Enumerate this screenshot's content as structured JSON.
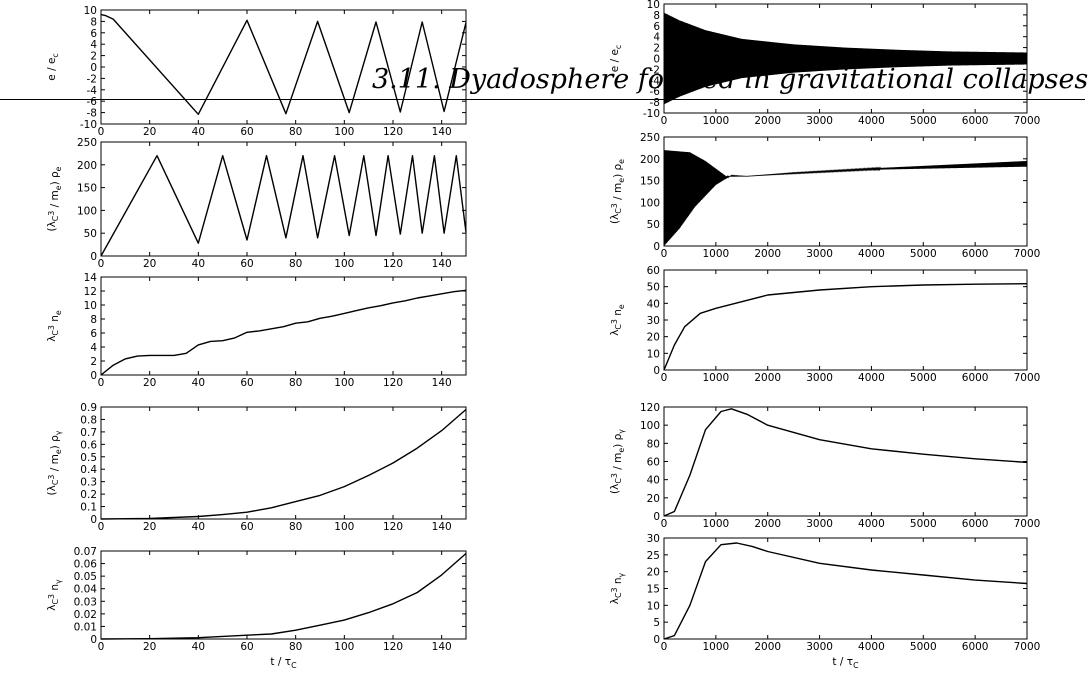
{
  "header": {
    "title": "3.11. Dyadosphere formed in gravitational collapses"
  },
  "chart_data": [
    {
      "id": "left-e",
      "type": "line",
      "column": "left",
      "ylabel": "e / e_c",
      "xlim": [
        0,
        150
      ],
      "ylim": [
        -10,
        10
      ],
      "xticks": [
        0,
        20,
        40,
        60,
        80,
        100,
        120,
        140
      ],
      "yticks": [
        -10,
        -8,
        -6,
        -4,
        -2,
        0,
        2,
        4,
        6,
        8,
        10
      ],
      "series": [
        {
          "x": [
            0,
            2,
            5,
            40,
            60,
            76,
            89,
            102,
            113,
            123,
            132,
            141,
            150
          ],
          "y": [
            9.2,
            9.0,
            8.4,
            -8.3,
            8.2,
            -8.2,
            8.0,
            -8.0,
            7.9,
            -7.9,
            7.9,
            -7.8,
            7.8
          ]
        }
      ]
    },
    {
      "id": "left-rho-e",
      "type": "line",
      "column": "left",
      "ylabel": "(λ_C^3 / m_e) ρ_e",
      "xlim": [
        0,
        150
      ],
      "ylim": [
        0,
        250
      ],
      "xticks": [
        0,
        20,
        40,
        60,
        80,
        100,
        120,
        140
      ],
      "yticks": [
        0,
        50,
        100,
        150,
        200,
        250
      ],
      "series": [
        {
          "x": [
            0,
            23,
            40,
            50,
            60,
            68,
            76,
            83,
            89,
            96,
            102,
            108,
            113,
            118,
            123,
            128,
            132,
            137,
            141,
            146,
            150
          ],
          "y": [
            0,
            220,
            28,
            220,
            35,
            220,
            40,
            220,
            40,
            220,
            45,
            220,
            45,
            220,
            48,
            220,
            50,
            220,
            50,
            220,
            52
          ]
        }
      ]
    },
    {
      "id": "left-n-e",
      "type": "line",
      "column": "left",
      "ylabel": "λ_C^3 n_e",
      "xlim": [
        0,
        150
      ],
      "ylim": [
        0,
        14
      ],
      "xticks": [
        0,
        20,
        40,
        60,
        80,
        100,
        120,
        140
      ],
      "yticks": [
        0,
        2,
        4,
        6,
        8,
        10,
        12,
        14
      ],
      "series": [
        {
          "x": [
            0,
            5,
            10,
            15,
            20,
            25,
            30,
            35,
            40,
            45,
            50,
            55,
            60,
            65,
            70,
            75,
            80,
            85,
            90,
            95,
            100,
            105,
            110,
            115,
            120,
            125,
            130,
            135,
            140,
            145,
            150
          ],
          "y": [
            0,
            1.4,
            2.3,
            2.7,
            2.8,
            2.8,
            2.8,
            3.1,
            4.3,
            4.8,
            4.9,
            5.3,
            6.1,
            6.3,
            6.6,
            6.9,
            7.4,
            7.6,
            8.1,
            8.4,
            8.8,
            9.2,
            9.6,
            9.9,
            10.3,
            10.6,
            11.0,
            11.3,
            11.6,
            11.9,
            12.1
          ]
        }
      ]
    },
    {
      "id": "left-rho-gamma",
      "type": "line",
      "column": "left",
      "ylabel": "(λ_C^3 / m_e) ρ_γ",
      "xlim": [
        0,
        150
      ],
      "ylim": [
        0,
        0.9
      ],
      "xticks": [
        0,
        20,
        40,
        60,
        80,
        100,
        120,
        140
      ],
      "yticks": [
        0,
        0.1,
        0.2,
        0.3,
        0.4,
        0.5,
        0.6,
        0.7,
        0.8,
        0.9
      ],
      "series": [
        {
          "x": [
            0,
            20,
            40,
            50,
            60,
            70,
            80,
            90,
            100,
            110,
            120,
            130,
            140,
            150
          ],
          "y": [
            0,
            0.005,
            0.02,
            0.035,
            0.055,
            0.09,
            0.14,
            0.19,
            0.26,
            0.35,
            0.45,
            0.57,
            0.71,
            0.88
          ]
        }
      ]
    },
    {
      "id": "left-n-gamma",
      "type": "line",
      "column": "left",
      "ylabel": "λ_C^3 n_γ",
      "xlabel": "t / τ_C",
      "xlim": [
        0,
        150
      ],
      "ylim": [
        0,
        0.07
      ],
      "xticks": [
        0,
        20,
        40,
        60,
        80,
        100,
        120,
        140
      ],
      "yticks": [
        0,
        0.01,
        0.02,
        0.03,
        0.04,
        0.05,
        0.06,
        0.07
      ],
      "series": [
        {
          "x": [
            0,
            20,
            40,
            60,
            70,
            80,
            90,
            100,
            110,
            120,
            130,
            140,
            150
          ],
          "y": [
            0,
            0.0002,
            0.001,
            0.003,
            0.004,
            0.007,
            0.011,
            0.015,
            0.021,
            0.028,
            0.037,
            0.051,
            0.068
          ]
        }
      ]
    },
    {
      "id": "right-e",
      "type": "line",
      "column": "right",
      "ylabel": "e / e_c",
      "xlim": [
        0,
        7000
      ],
      "ylim": [
        -10,
        10
      ],
      "xticks": [
        0,
        1000,
        2000,
        3000,
        4000,
        5000,
        6000,
        7000
      ],
      "yticks": [
        -10,
        -8,
        -6,
        -4,
        -2,
        0,
        2,
        4,
        6,
        8,
        10
      ],
      "envelope": {
        "x": [
          0,
          300,
          800,
          1500,
          2500,
          3500,
          4500,
          5500,
          7000
        ],
        "y": [
          8.4,
          7.0,
          5.2,
          3.6,
          2.6,
          2.0,
          1.6,
          1.3,
          1.1
        ]
      }
    },
    {
      "id": "right-rho-e",
      "type": "line",
      "column": "right",
      "ylabel": "(λ_C^3 / m_e) ρ_e",
      "xlim": [
        0,
        7000
      ],
      "ylim": [
        0,
        250
      ],
      "xticks": [
        0,
        1000,
        2000,
        3000,
        4000,
        5000,
        6000,
        7000
      ],
      "yticks": [
        0,
        50,
        100,
        150,
        200,
        250
      ],
      "upper": {
        "x": [
          0,
          500,
          800,
          1200,
          1600,
          2500,
          4000,
          7000
        ],
        "y": [
          220,
          215,
          195,
          160,
          160,
          168,
          178,
          195
        ]
      },
      "lower": {
        "x": [
          0,
          300,
          600,
          1000,
          1300,
          1600,
          2500,
          4000,
          7000
        ],
        "y": [
          0,
          40,
          90,
          140,
          162,
          160,
          166,
          175,
          182
        ]
      }
    },
    {
      "id": "right-n-e",
      "type": "line",
      "column": "right",
      "ylabel": "λ_C^3 n_e",
      "xlim": [
        0,
        7000
      ],
      "ylim": [
        0,
        60
      ],
      "xticks": [
        0,
        1000,
        2000,
        3000,
        4000,
        5000,
        6000,
        7000
      ],
      "yticks": [
        0,
        10,
        20,
        30,
        40,
        50,
        60
      ],
      "series": [
        {
          "x": [
            0,
            200,
            400,
            700,
            1000,
            1500,
            2000,
            3000,
            4000,
            5000,
            6000,
            7000
          ],
          "y": [
            0,
            15,
            26,
            34,
            37,
            41,
            45,
            48,
            50,
            51,
            51.5,
            51.8
          ]
        }
      ]
    },
    {
      "id": "right-rho-gamma",
      "type": "line",
      "column": "right",
      "ylabel": "(λ_C^3 / m_e) ρ_γ",
      "xlim": [
        0,
        7000
      ],
      "ylim": [
        0,
        120
      ],
      "xticks": [
        0,
        1000,
        2000,
        3000,
        4000,
        5000,
        6000,
        7000
      ],
      "yticks": [
        0,
        20,
        40,
        60,
        80,
        100,
        120
      ],
      "series": [
        {
          "x": [
            0,
            200,
            500,
            800,
            1100,
            1300,
            1600,
            2000,
            3000,
            4000,
            5000,
            6000,
            7000
          ],
          "y": [
            0,
            5,
            45,
            95,
            115,
            118,
            112,
            100,
            84,
            74,
            68,
            63,
            59
          ]
        }
      ]
    },
    {
      "id": "right-n-gamma",
      "type": "line",
      "column": "right",
      "ylabel": "λ_C^3 n_γ",
      "xlabel": "t / τ_C",
      "xlim": [
        0,
        7000
      ],
      "ylim": [
        0,
        30
      ],
      "xticks": [
        0,
        1000,
        2000,
        3000,
        4000,
        5000,
        6000,
        7000
      ],
      "yticks": [
        0,
        5,
        10,
        15,
        20,
        25,
        30
      ],
      "series": [
        {
          "x": [
            0,
            200,
            500,
            800,
            1100,
            1400,
            1700,
            2000,
            3000,
            4000,
            5000,
            6000,
            7000
          ],
          "y": [
            0,
            1,
            10,
            23,
            28,
            28.5,
            27.5,
            26,
            22.5,
            20.5,
            19,
            17.5,
            16.5
          ]
        }
      ]
    }
  ]
}
